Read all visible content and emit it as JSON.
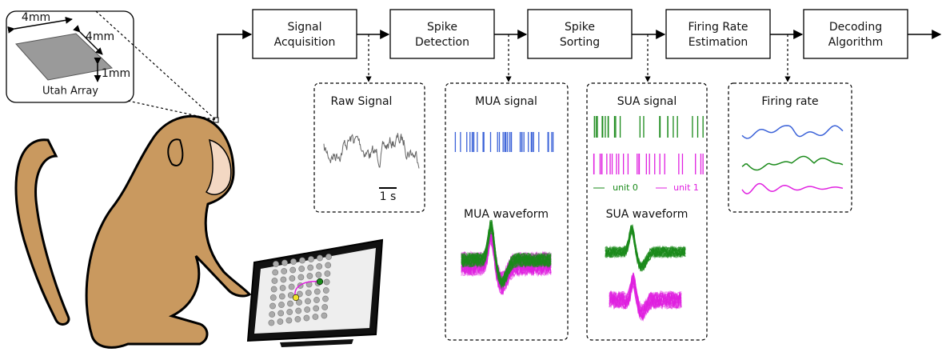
{
  "inset": {
    "width": "4mm",
    "depth": "4mm",
    "height": "1mm",
    "caption": "Utah Array"
  },
  "pipeline": [
    {
      "lines": [
        "Signal",
        "Acquisition"
      ]
    },
    {
      "lines": [
        "Spike",
        "Detection"
      ]
    },
    {
      "lines": [
        "Spike",
        "Sorting"
      ]
    },
    {
      "lines": [
        "Firing Rate",
        "Estimation"
      ]
    },
    {
      "lines": [
        "Decoding",
        "Algorithm"
      ]
    }
  ],
  "panels": {
    "raw": {
      "title": "Raw Signal",
      "scale": "1 s"
    },
    "mua": {
      "title": "MUA signal",
      "waveform": "MUA waveform"
    },
    "sua": {
      "title": "SUA signal",
      "legend": [
        "unit 0",
        "unit 1"
      ],
      "waveform": "SUA waveform"
    },
    "rate": {
      "title": "Firing rate"
    }
  }
}
